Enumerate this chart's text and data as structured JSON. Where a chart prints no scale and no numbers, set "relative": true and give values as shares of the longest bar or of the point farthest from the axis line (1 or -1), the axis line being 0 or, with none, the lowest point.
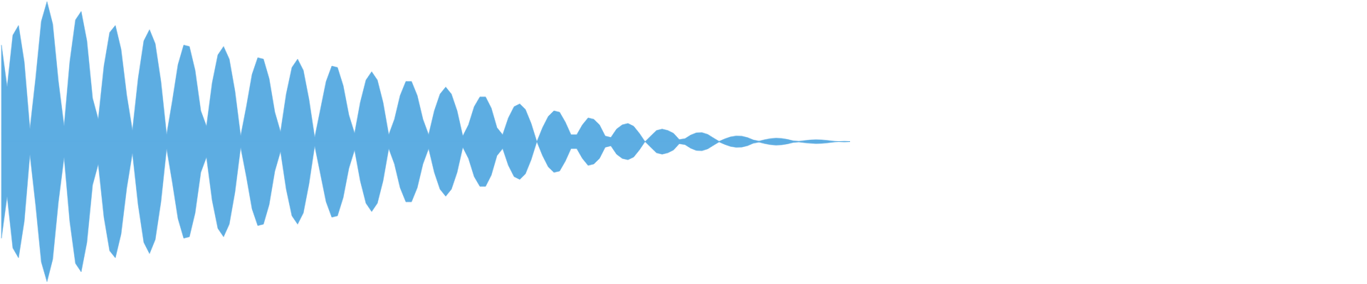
{
  "chart_data": {
    "type": "area",
    "relative": true,
    "categories": [
      null,
      null,
      null,
      null,
      null,
      null,
      null,
      null,
      null,
      null,
      null,
      null,
      null,
      null,
      null,
      null,
      null,
      null,
      null,
      null,
      null,
      null,
      null,
      null,
      null,
      null,
      null,
      null,
      null,
      null,
      null,
      null,
      null,
      null,
      null,
      null,
      null,
      null,
      null,
      null,
      null,
      null,
      null,
      null,
      null,
      null,
      null,
      null,
      null,
      null,
      null,
      null,
      null,
      null,
      null,
      null,
      null,
      null,
      null,
      null,
      null,
      null,
      null,
      null,
      null,
      null,
      null,
      null,
      null,
      null,
      null,
      null,
      null,
      null,
      null,
      null,
      null,
      null,
      null,
      null,
      null,
      null,
      null,
      null,
      null,
      null,
      null,
      null,
      null,
      null,
      null,
      null,
      null,
      null,
      null,
      null,
      null,
      null,
      null,
      null,
      null,
      null,
      null,
      null,
      null,
      null,
      null,
      null,
      null,
      null,
      null,
      null,
      null,
      null,
      null,
      null,
      null,
      null,
      null,
      null,
      null,
      null,
      null,
      null,
      null,
      null,
      null,
      null,
      null,
      null,
      null,
      null,
      null,
      null,
      null,
      null,
      null,
      null,
      null,
      null,
      null,
      null,
      null,
      null,
      null,
      null,
      null,
      null,
      null,
      null
    ],
    "series": [
      {
        "color": "#5dade2",
        "values": [
          0.69,
          0.39,
          0.76,
          0.83,
          0.57,
          0.09,
          0.45,
          0.86,
          1.0,
          0.84,
          0.43,
          0.11,
          0.57,
          0.87,
          0.93,
          0.72,
          0.31,
          0.16,
          0.54,
          0.78,
          0.83,
          0.66,
          0.33,
          0.08,
          0.45,
          0.72,
          0.8,
          0.7,
          0.43,
          0.05,
          0.29,
          0.55,
          0.69,
          0.68,
          0.51,
          0.22,
          0.11,
          0.42,
          0.62,
          0.68,
          0.59,
          0.36,
          0.04,
          0.25,
          0.48,
          0.6,
          0.59,
          0.45,
          0.21,
          0.07,
          0.34,
          0.53,
          0.59,
          0.51,
          0.3,
          0.03,
          0.23,
          0.43,
          0.54,
          0.53,
          0.4,
          0.19,
          0.06,
          0.28,
          0.44,
          0.5,
          0.44,
          0.28,
          0.05,
          0.16,
          0.33,
          0.43,
          0.43,
          0.33,
          0.16,
          0.05,
          0.22,
          0.34,
          0.39,
          0.34,
          0.22,
          0.04,
          0.12,
          0.25,
          0.32,
          0.32,
          0.24,
          0.1,
          0.05,
          0.17,
          0.25,
          0.27,
          0.23,
          0.13,
          0.0,
          0.1,
          0.18,
          0.22,
          0.21,
          0.14,
          0.05,
          0.05,
          0.12,
          0.17,
          0.16,
          0.12,
          0.04,
          0.03,
          0.09,
          0.12,
          0.13,
          0.11,
          0.06,
          0.0,
          0.04,
          0.08,
          0.09,
          0.08,
          0.06,
          0.015,
          0.021,
          0.047,
          0.063,
          0.065,
          0.052,
          0.027,
          0.002,
          0.02,
          0.034,
          0.041,
          0.039,
          0.029,
          0.012,
          0.004,
          0.014,
          0.022,
          0.025,
          0.023,
          0.016,
          0.006,
          0.003,
          0.008,
          0.012,
          0.014,
          0.013,
          0.009,
          0.004,
          0,
          0.003,
          0
        ]
      },
      {
        "color": "#5dade2",
        "values": [
          -0.69,
          -0.39,
          -0.76,
          -0.83,
          -0.57,
          -0.09,
          -0.45,
          -0.86,
          -1.0,
          -0.84,
          -0.43,
          -0.11,
          -0.57,
          -0.87,
          -0.93,
          -0.72,
          -0.31,
          -0.16,
          -0.54,
          -0.78,
          -0.83,
          -0.66,
          -0.33,
          -0.08,
          -0.45,
          -0.72,
          -0.8,
          -0.7,
          -0.43,
          -0.05,
          -0.29,
          -0.55,
          -0.69,
          -0.68,
          -0.51,
          -0.22,
          -0.11,
          -0.42,
          -0.62,
          -0.68,
          -0.59,
          -0.36,
          -0.04,
          -0.25,
          -0.48,
          -0.6,
          -0.59,
          -0.45,
          -0.21,
          -0.07,
          -0.34,
          -0.53,
          -0.59,
          -0.51,
          -0.3,
          -0.03,
          -0.23,
          -0.43,
          -0.54,
          -0.53,
          -0.4,
          -0.19,
          -0.06,
          -0.28,
          -0.44,
          -0.5,
          -0.44,
          -0.28,
          -0.05,
          -0.16,
          -0.33,
          -0.43,
          -0.43,
          -0.33,
          -0.16,
          -0.05,
          -0.22,
          -0.34,
          -0.39,
          -0.34,
          -0.22,
          -0.04,
          -0.12,
          -0.25,
          -0.32,
          -0.32,
          -0.24,
          -0.1,
          -0.05,
          -0.17,
          -0.25,
          -0.27,
          -0.23,
          -0.13,
          0.0,
          -0.1,
          -0.18,
          -0.22,
          -0.21,
          -0.14,
          -0.05,
          -0.05,
          -0.12,
          -0.17,
          -0.16,
          -0.12,
          -0.04,
          -0.03,
          -0.09,
          -0.12,
          -0.13,
          -0.11,
          -0.06,
          0.0,
          -0.04,
          -0.08,
          -0.09,
          -0.08,
          -0.06,
          -0.015,
          -0.021,
          -0.047,
          -0.063,
          -0.065,
          -0.052,
          -0.027,
          -0.002,
          -0.02,
          -0.034,
          -0.041,
          -0.039,
          -0.029,
          -0.012,
          -0.004,
          -0.014,
          -0.022,
          -0.025,
          -0.023,
          -0.016,
          -0.006,
          -0.003,
          -0.008,
          -0.012,
          -0.014,
          -0.013,
          -0.009,
          -0.004,
          0,
          -0.003,
          0
        ]
      }
    ],
    "ref_lines": [
      {
        "axis": "y",
        "value": 0,
        "color": "#5dade2"
      }
    ]
  }
}
